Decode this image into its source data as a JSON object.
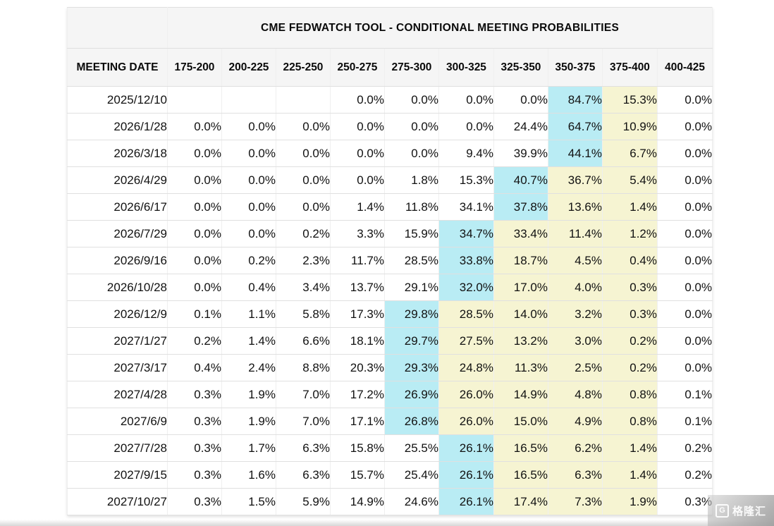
{
  "chart_data": {
    "type": "table",
    "title": "CME FEDWATCH TOOL - CONDITIONAL MEETING PROBABILITIES",
    "columns": [
      "MEETING DATE",
      "175-200",
      "200-225",
      "225-250",
      "250-275",
      "275-300",
      "300-325",
      "325-350",
      "350-375",
      "375-400",
      "400-425"
    ],
    "highlight_colors": {
      "max_cell": "#b9ecf4",
      "right_of_max": "#f6f4d2"
    },
    "rows": [
      {
        "date": "2025/12/10",
        "values": [
          "",
          "",
          "",
          "0.0%",
          "0.0%",
          "0.0%",
          "0.0%",
          "84.7%",
          "15.3%",
          "0.0%"
        ],
        "cyan_col": 7,
        "yellow_cols": [
          8
        ]
      },
      {
        "date": "2026/1/28",
        "values": [
          "0.0%",
          "0.0%",
          "0.0%",
          "0.0%",
          "0.0%",
          "0.0%",
          "24.4%",
          "64.7%",
          "10.9%",
          "0.0%"
        ],
        "cyan_col": 7,
        "yellow_cols": [
          8
        ]
      },
      {
        "date": "2026/3/18",
        "values": [
          "0.0%",
          "0.0%",
          "0.0%",
          "0.0%",
          "0.0%",
          "9.4%",
          "39.9%",
          "44.1%",
          "6.7%",
          "0.0%"
        ],
        "cyan_col": 7,
        "yellow_cols": [
          8
        ]
      },
      {
        "date": "2026/4/29",
        "values": [
          "0.0%",
          "0.0%",
          "0.0%",
          "0.0%",
          "1.8%",
          "15.3%",
          "40.7%",
          "36.7%",
          "5.4%",
          "0.0%"
        ],
        "cyan_col": 6,
        "yellow_cols": [
          7,
          8
        ]
      },
      {
        "date": "2026/6/17",
        "values": [
          "0.0%",
          "0.0%",
          "0.0%",
          "1.4%",
          "11.8%",
          "34.1%",
          "37.8%",
          "13.6%",
          "1.4%",
          "0.0%"
        ],
        "cyan_col": 6,
        "yellow_cols": [
          7,
          8
        ]
      },
      {
        "date": "2026/7/29",
        "values": [
          "0.0%",
          "0.0%",
          "0.2%",
          "3.3%",
          "15.9%",
          "34.7%",
          "33.4%",
          "11.4%",
          "1.2%",
          "0.0%"
        ],
        "cyan_col": 5,
        "yellow_cols": [
          6,
          7,
          8
        ]
      },
      {
        "date": "2026/9/16",
        "values": [
          "0.0%",
          "0.2%",
          "2.3%",
          "11.7%",
          "28.5%",
          "33.8%",
          "18.7%",
          "4.5%",
          "0.4%",
          "0.0%"
        ],
        "cyan_col": 5,
        "yellow_cols": [
          6,
          7,
          8
        ]
      },
      {
        "date": "2026/10/28",
        "values": [
          "0.0%",
          "0.4%",
          "3.4%",
          "13.7%",
          "29.1%",
          "32.0%",
          "17.0%",
          "4.0%",
          "0.3%",
          "0.0%"
        ],
        "cyan_col": 5,
        "yellow_cols": [
          6,
          7,
          8
        ]
      },
      {
        "date": "2026/12/9",
        "values": [
          "0.1%",
          "1.1%",
          "5.8%",
          "17.3%",
          "29.8%",
          "28.5%",
          "14.0%",
          "3.2%",
          "0.3%",
          "0.0%"
        ],
        "cyan_col": 4,
        "yellow_cols": [
          5,
          6,
          7,
          8
        ]
      },
      {
        "date": "2027/1/27",
        "values": [
          "0.2%",
          "1.4%",
          "6.6%",
          "18.1%",
          "29.7%",
          "27.5%",
          "13.2%",
          "3.0%",
          "0.2%",
          "0.0%"
        ],
        "cyan_col": 4,
        "yellow_cols": [
          5,
          6,
          7,
          8
        ]
      },
      {
        "date": "2027/3/17",
        "values": [
          "0.4%",
          "2.4%",
          "8.8%",
          "20.3%",
          "29.3%",
          "24.8%",
          "11.3%",
          "2.5%",
          "0.2%",
          "0.0%"
        ],
        "cyan_col": 4,
        "yellow_cols": [
          5,
          6,
          7,
          8
        ]
      },
      {
        "date": "2027/4/28",
        "values": [
          "0.3%",
          "1.9%",
          "7.0%",
          "17.2%",
          "26.9%",
          "26.0%",
          "14.9%",
          "4.8%",
          "0.8%",
          "0.1%"
        ],
        "cyan_col": 4,
        "yellow_cols": [
          5,
          6,
          7,
          8
        ]
      },
      {
        "date": "2027/6/9",
        "values": [
          "0.3%",
          "1.9%",
          "7.0%",
          "17.1%",
          "26.8%",
          "26.0%",
          "15.0%",
          "4.9%",
          "0.8%",
          "0.1%"
        ],
        "cyan_col": 4,
        "yellow_cols": [
          5,
          6,
          7,
          8
        ]
      },
      {
        "date": "2027/7/28",
        "values": [
          "0.3%",
          "1.7%",
          "6.3%",
          "15.8%",
          "25.5%",
          "26.1%",
          "16.5%",
          "6.2%",
          "1.4%",
          "0.2%"
        ],
        "cyan_col": 5,
        "yellow_cols": [
          6,
          7,
          8
        ]
      },
      {
        "date": "2027/9/15",
        "values": [
          "0.3%",
          "1.6%",
          "6.3%",
          "15.7%",
          "25.4%",
          "26.1%",
          "16.5%",
          "6.3%",
          "1.4%",
          "0.2%"
        ],
        "cyan_col": 5,
        "yellow_cols": [
          6,
          7,
          8
        ]
      },
      {
        "date": "2027/10/27",
        "values": [
          "0.3%",
          "1.5%",
          "5.9%",
          "14.9%",
          "24.6%",
          "26.1%",
          "17.4%",
          "7.3%",
          "1.9%",
          "0.3%"
        ],
        "cyan_col": 5,
        "yellow_cols": [
          6,
          7,
          8
        ]
      }
    ]
  },
  "watermark": {
    "logo_letter": "G",
    "brand": "格隆汇"
  }
}
